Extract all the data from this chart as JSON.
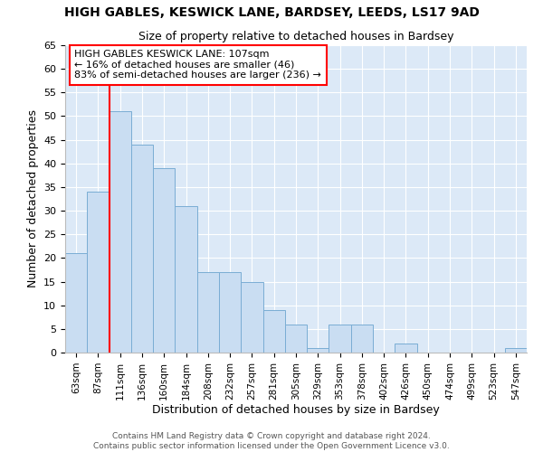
{
  "title1": "HIGH GABLES, KESWICK LANE, BARDSEY, LEEDS, LS17 9AD",
  "title2": "Size of property relative to detached houses in Bardsey",
  "xlabel": "Distribution of detached houses by size in Bardsey",
  "ylabel": "Number of detached properties",
  "categories": [
    "63sqm",
    "87sqm",
    "111sqm",
    "136sqm",
    "160sqm",
    "184sqm",
    "208sqm",
    "232sqm",
    "257sqm",
    "281sqm",
    "305sqm",
    "329sqm",
    "353sqm",
    "378sqm",
    "402sqm",
    "426sqm",
    "450sqm",
    "474sqm",
    "499sqm",
    "523sqm",
    "547sqm"
  ],
  "values": [
    21,
    34,
    51,
    44,
    39,
    31,
    17,
    17,
    15,
    9,
    6,
    1,
    6,
    6,
    0,
    2,
    0,
    0,
    0,
    0,
    1
  ],
  "bar_color": "#c9ddf2",
  "bar_edge_color": "#7aadd4",
  "annotation_text_line1": "HIGH GABLES KESWICK LANE: 107sqm",
  "annotation_text_line2": "← 16% of detached houses are smaller (46)",
  "annotation_text_line3": "83% of semi-detached houses are larger (236) →",
  "footer1": "Contains HM Land Registry data © Crown copyright and database right 2024.",
  "footer2": "Contains public sector information licensed under the Open Government Licence v3.0.",
  "ylim": [
    0,
    65
  ],
  "yticks": [
    0,
    5,
    10,
    15,
    20,
    25,
    30,
    35,
    40,
    45,
    50,
    55,
    60,
    65
  ],
  "background_color": "#dce9f7",
  "grid_color": "#ffffff",
  "fig_bg": "#ffffff",
  "red_line_index": 2
}
